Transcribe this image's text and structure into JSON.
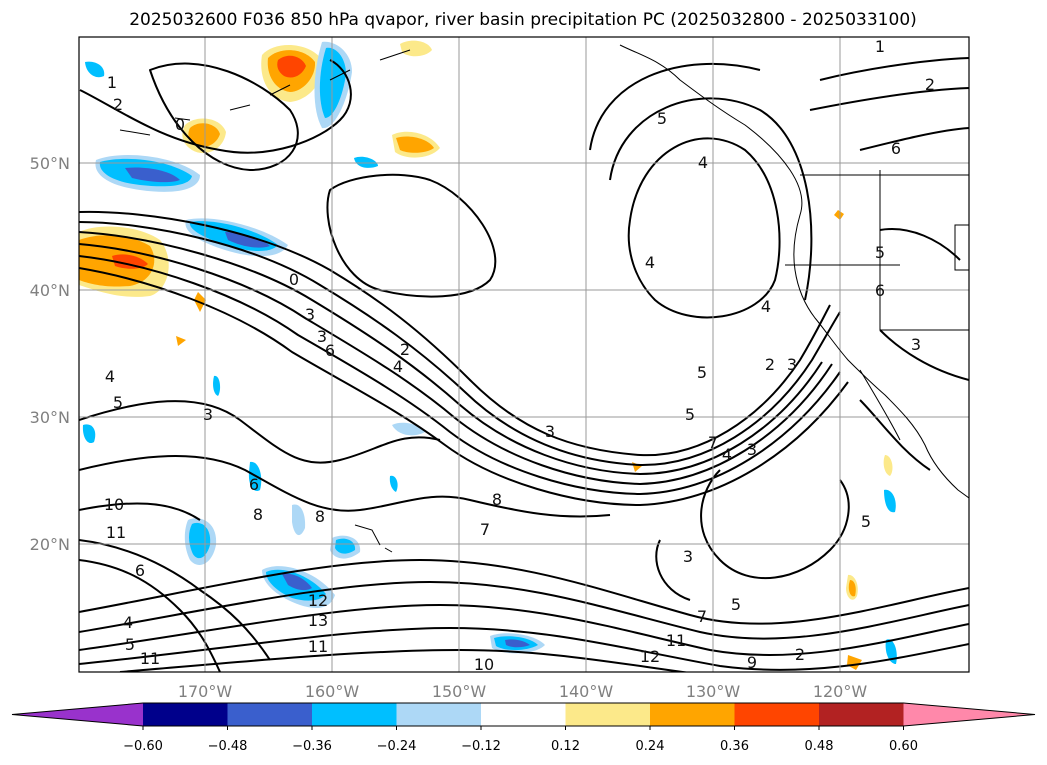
{
  "title": "2025032600 F036 850 hPa qvapor, river basin precipitation PC (2025032800 - 2025033100)",
  "lat_labels": [
    "50°N",
    "40°N",
    "30°N",
    "20°N"
  ],
  "lon_labels": [
    "170°W",
    "160°W",
    "150°W",
    "140°W",
    "130°W",
    "120°W"
  ],
  "colorbar": {
    "ticks": [
      "−0.60",
      "−0.48",
      "−0.36",
      "−0.24",
      "−0.12",
      "0.12",
      "0.24",
      "0.36",
      "0.48",
      "0.60"
    ],
    "colors": [
      "#9932cc",
      "#00008b",
      "#3a5fcd",
      "#00bfff",
      "#add8f6",
      "#ffffff",
      "#fce98a",
      "#ffa500",
      "#ff4500",
      "#b22222",
      "#ff88aa"
    ]
  },
  "contour_labels": [
    "1",
    "2",
    "0",
    "1",
    "2",
    "6",
    "5",
    "4",
    "4",
    "4",
    "5",
    "6",
    "0",
    "3",
    "3",
    "6",
    "2",
    "4",
    "4",
    "5",
    "3",
    "5",
    "2",
    "3",
    "5",
    "3",
    "7",
    "4",
    "3",
    "8",
    "7",
    "10",
    "11",
    "6",
    "8",
    "8",
    "6",
    "4",
    "5",
    "11",
    "12",
    "13",
    "11",
    "10",
    "11",
    "12",
    "9",
    "2",
    "5",
    "7",
    "3",
    "5",
    "3"
  ]
}
